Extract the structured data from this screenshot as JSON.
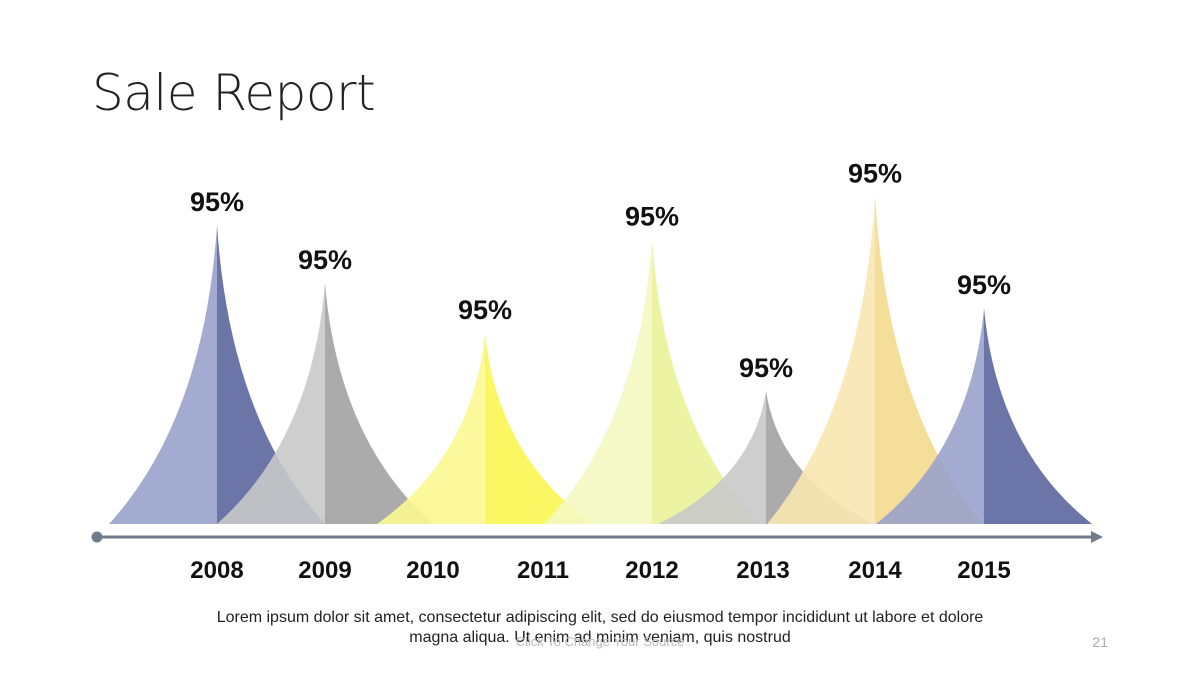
{
  "slide": {
    "title": "Sale Report",
    "description": "Lorem ipsum dolor sit amet, consectetur adipiscing elit, sed do eiusmod tempor incididunt ut labore et dolore magna aliqua. Ut enim ad minim veniam, quis nostrud",
    "source": "Click To Change Your Source",
    "page_number": "21"
  },
  "chart_data": {
    "type": "area",
    "title": "",
    "categories": [
      "2008",
      "2009",
      "2010",
      "2011",
      "2012",
      "2013",
      "2014",
      "2015"
    ],
    "peaks": [
      {
        "label": "95%",
        "height": 0.83,
        "color_left": "#9aa2cb",
        "color_right": "#5b669f"
      },
      {
        "label": "95%",
        "height": 0.67,
        "color_left": "#c9c9c9",
        "color_right": "#a2a2a2"
      },
      {
        "label": "95%",
        "height": 0.53,
        "color_left": "#fbf890",
        "color_right": "#f9f651"
      },
      {
        "label": "95%",
        "height": 0.79,
        "color_left": "#f4f8c2",
        "color_right": "#eaf39a"
      },
      {
        "label": "95%",
        "height": 0.37,
        "color_left": "#c9c9c9",
        "color_right": "#a2a2a2"
      },
      {
        "label": "95%",
        "height": 0.91,
        "color_left": "#f8e6b0",
        "color_right": "#f4da8e"
      },
      {
        "label": "95%",
        "height": 0.6,
        "color_left": "#9aa2cb",
        "color_right": "#5b669f"
      }
    ],
    "axis_color": "#6f7d8a",
    "grid": false,
    "legend": "none"
  }
}
